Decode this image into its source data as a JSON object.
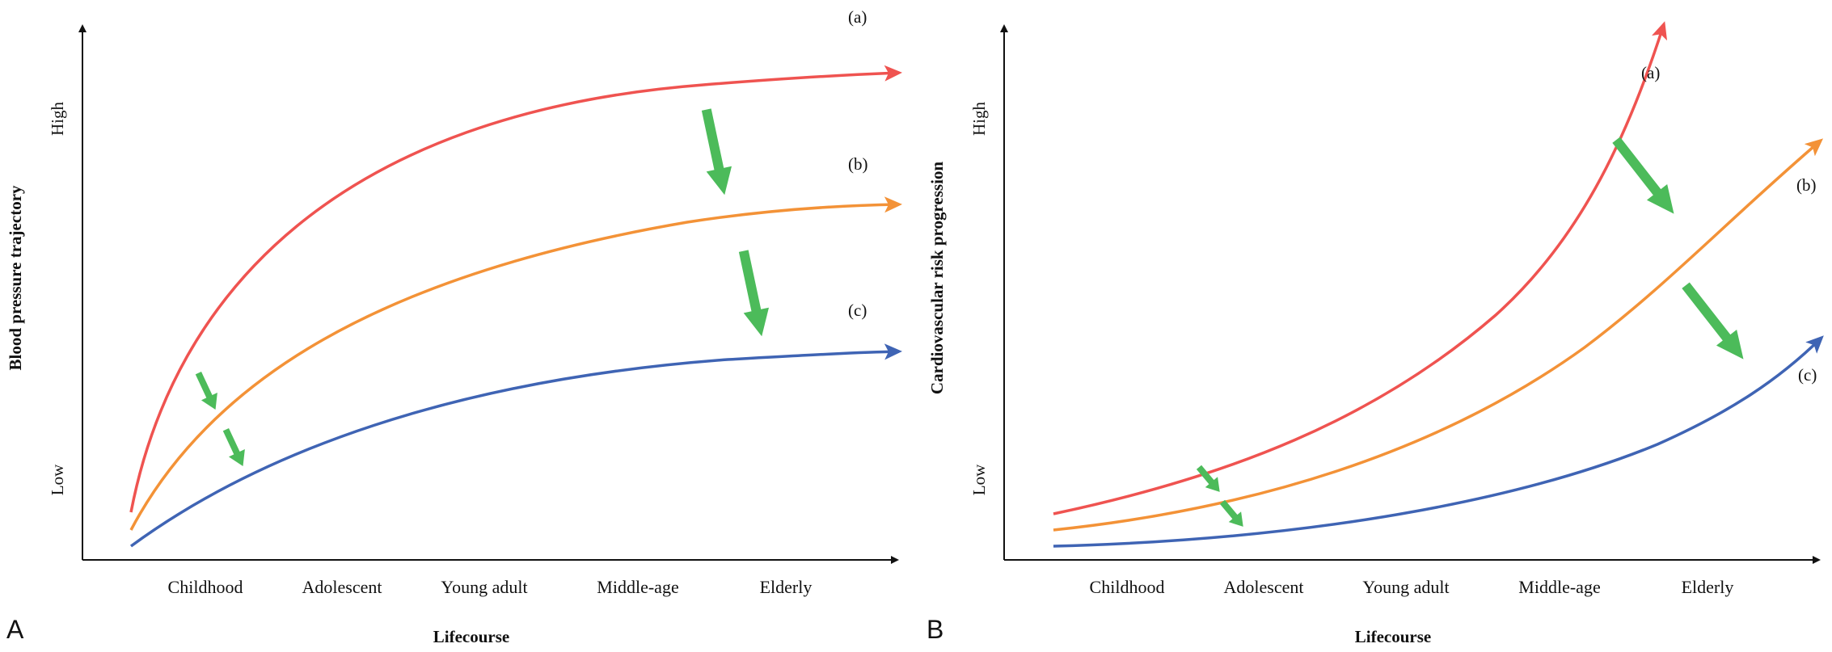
{
  "colors": {
    "curve_a": "#ef5350",
    "curve_b": "#f39237",
    "curve_c": "#3f64b4",
    "arrow": "#4cbb5a",
    "axis": "#111111"
  },
  "panels": [
    {
      "letter": "A",
      "ylabel": "Blood pressure trajectory",
      "xlabel": "Lifecourse",
      "y_high": "High",
      "y_low": "Low",
      "stages": [
        "Childhood",
        "Adolescent",
        "Young adult",
        "Middle-age",
        "Elderly"
      ],
      "curves": [
        {
          "label": "(a)",
          "color_key": "curve_a"
        },
        {
          "label": "(b)",
          "color_key": "curve_b"
        },
        {
          "label": "(c)",
          "color_key": "curve_c"
        }
      ]
    },
    {
      "letter": "B",
      "ylabel": "Cardiovascular risk progression",
      "xlabel": "Lifecourse",
      "y_high": "High",
      "y_low": "Low",
      "stages": [
        "Childhood",
        "Adolescent",
        "Young adult",
        "Middle-age",
        "Elderly"
      ],
      "curves": [
        {
          "label": "(a)",
          "color_key": "curve_a"
        },
        {
          "label": "(b)",
          "color_key": "curve_b"
        },
        {
          "label": "(c)",
          "color_key": "curve_c"
        }
      ]
    }
  ]
}
